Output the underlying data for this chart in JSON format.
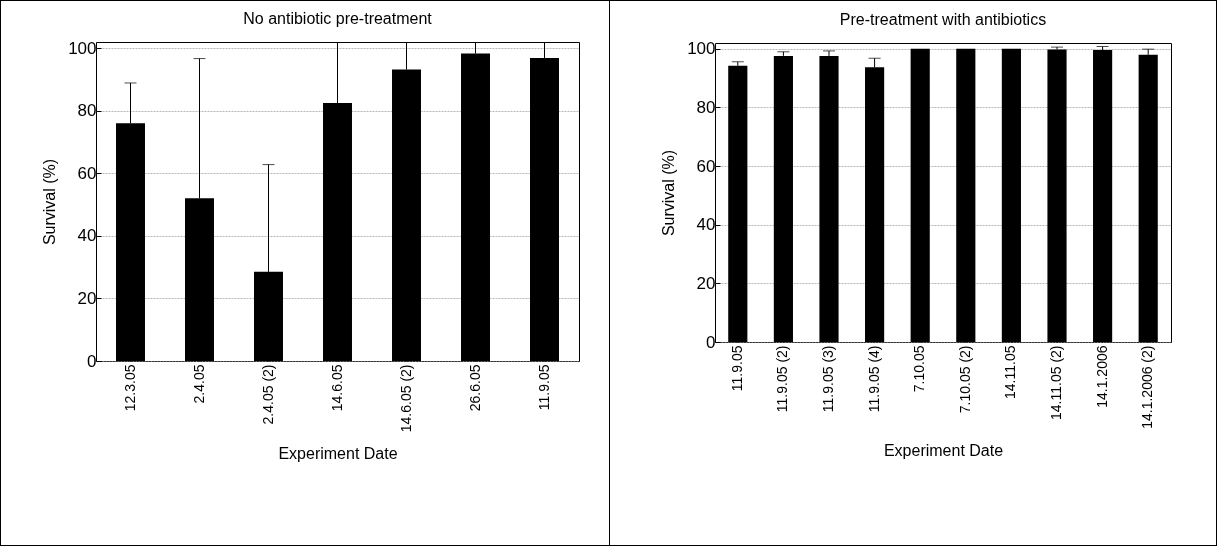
{
  "chart_data": [
    {
      "type": "bar",
      "title": "No antibiotic pre-treatment",
      "xlabel": "Experiment Date",
      "ylabel": "Survival (%)",
      "categories": [
        "12.3.05",
        "2.4.05",
        "2.4.05 (2)",
        "14.6.05",
        "14.6.05 (2)",
        "26.6.05",
        "11.9.05"
      ],
      "values": [
        76,
        52,
        28.5,
        82.5,
        93.2,
        98.3,
        96.9
      ],
      "color": "#000000",
      "errors": [
        [
          76,
          88.9
        ],
        [
          52,
          96.7
        ],
        [
          28.5,
          62.8
        ],
        [
          82.5,
          102
        ],
        [
          93.2,
          102
        ],
        [
          98.3,
          102
        ],
        [
          96.9,
          102
        ]
      ],
      "ylim": [
        0,
        102
      ],
      "yticks": [
        0,
        20,
        40,
        60,
        80,
        100
      ],
      "grid": "y"
    },
    {
      "type": "bar",
      "title": "Pre-treatment with antibiotics",
      "xlabel": "Experiment Date",
      "ylabel": "Survival (%)",
      "categories": [
        "11.9.05",
        "11.9.05 (2)",
        "11.9.05 (3)",
        "11.9.05 (4)",
        "7.10.05",
        "7.10.05 (2)",
        "14.11.05",
        "14.11.05 (2)",
        "14.1.2006",
        "14.1.2006 (2)"
      ],
      "values": [
        94.2,
        97.6,
        97.6,
        93.7,
        100,
        100,
        100,
        99.8,
        99.6,
        98.0
      ],
      "color": "#000000",
      "errors": [
        [
          94.2,
          95.6
        ],
        [
          97.6,
          99.0
        ],
        [
          97.6,
          99.3
        ],
        [
          93.7,
          96.8
        ],
        null,
        null,
        null,
        [
          99.8,
          100.6
        ],
        [
          99.6,
          100.8
        ],
        [
          98.0,
          99.9
        ]
      ],
      "ylim": [
        0,
        102
      ],
      "yticks": [
        0,
        20,
        40,
        60,
        80,
        100
      ],
      "grid": "y"
    }
  ]
}
